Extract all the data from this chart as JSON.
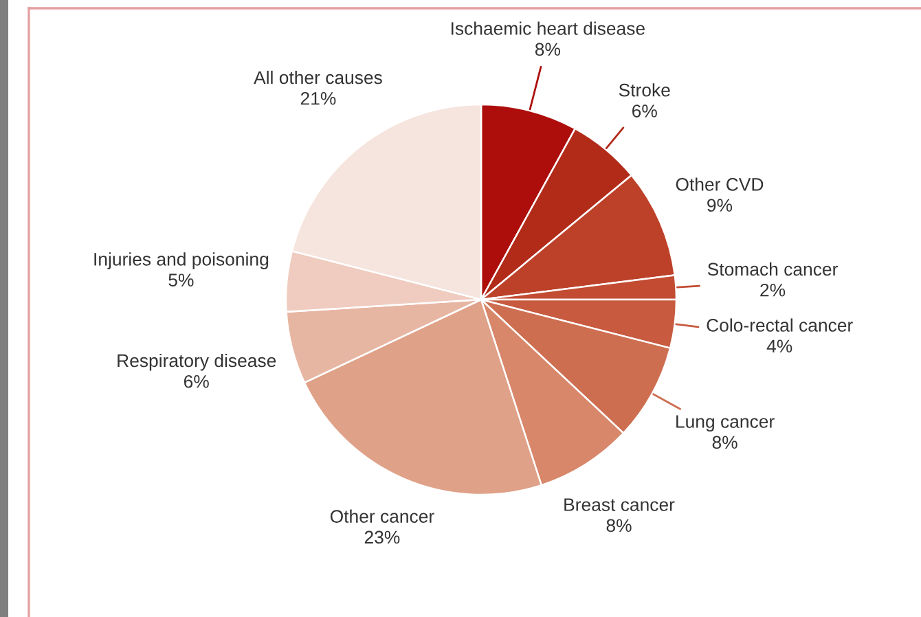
{
  "chart_data": {
    "type": "pie",
    "categories": [
      "Ischaemic heart disease",
      "Stroke",
      "Other CVD",
      "Stomach cancer",
      "Colo-rectal cancer",
      "Lung cancer",
      "Breast cancer",
      "Other cancer",
      "Respiratory disease",
      "Injuries and poisoning",
      "All other causes"
    ],
    "values": [
      8,
      6,
      9,
      2,
      4,
      8,
      8,
      23,
      6,
      5,
      21
    ],
    "value_labels": [
      "8%",
      "6%",
      "9%",
      "2%",
      "4%",
      "8%",
      "8%",
      "23%",
      "6%",
      "5%",
      "21%"
    ],
    "colors": [
      "#ad0e0c",
      "#b22b19",
      "#bd4129",
      "#c24b31",
      "#c75a3f",
      "#ce6e51",
      "#d8876a",
      "#dfa188",
      "#e7b6a3",
      "#efccbf",
      "#f6e4de"
    ]
  }
}
